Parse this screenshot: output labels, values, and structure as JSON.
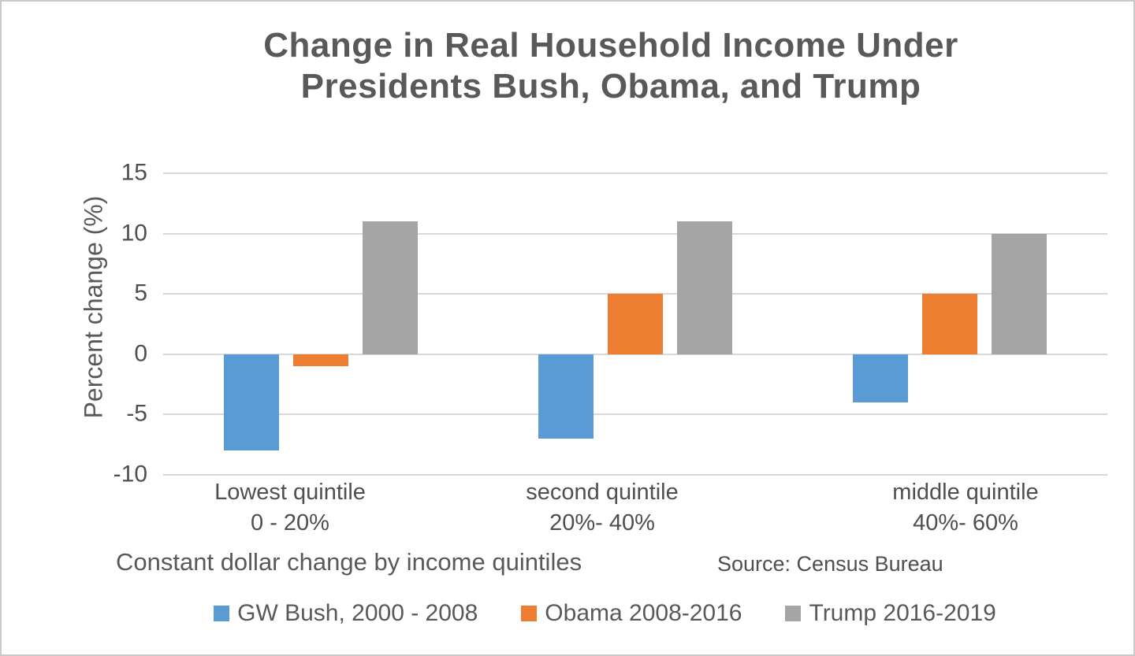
{
  "chart_data": {
    "type": "bar",
    "title": "Change in Real Household Income Under Presidents Bush, Obama, and Trump",
    "title_lines": [
      "Change in Real Household Income Under",
      "Presidents Bush, Obama, and Trump"
    ],
    "ylabel": "Percent change (%)",
    "xlabel": "Constant dollar change by income quintiles",
    "source": "Source: Census Bureau",
    "categories": [
      {
        "label": "Lowest quintile",
        "range": "0 - 20%"
      },
      {
        "label": "second quintile",
        "range": "20%- 40%"
      },
      {
        "label": "middle quintile",
        "range": "40%- 60%"
      }
    ],
    "series": [
      {
        "name": "GW Bush, 2000 - 2008",
        "color": "#5B9BD5",
        "values": [
          -8,
          -7,
          -4
        ]
      },
      {
        "name": "Obama 2008-2016",
        "color": "#ED7D31",
        "values": [
          -1,
          5,
          5
        ]
      },
      {
        "name": "Trump 2016-2019",
        "color": "#A5A5A5",
        "values": [
          11,
          11,
          10
        ]
      }
    ],
    "yticks": [
      15,
      10,
      5,
      0,
      -5,
      -10
    ],
    "ylim": [
      -10,
      15
    ],
    "grid": true,
    "legend_position": "bottom",
    "colors": {
      "gridline": "#d9d9d9",
      "text": "#595959",
      "border": "#c9c9c9",
      "background": "#ffffff"
    }
  }
}
